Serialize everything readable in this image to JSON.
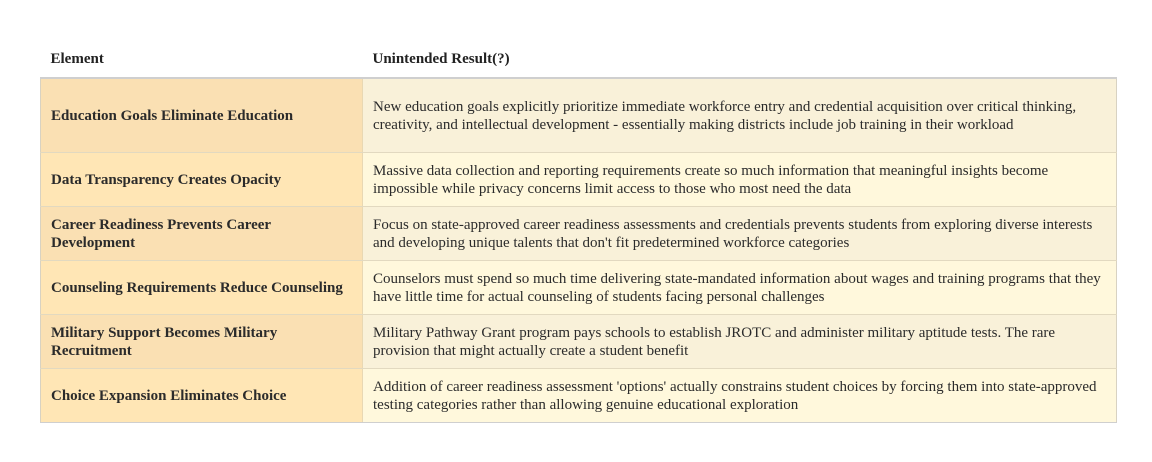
{
  "table": {
    "headers": {
      "element": "Element",
      "result": "Unintended Result(?)"
    },
    "rows": [
      {
        "element": "Education Goals Eliminate Education",
        "result": "New education goals explicitly prioritize immediate workforce entry and credential acquisition over critical thinking, creativity, and intellectual development - essentially making districts include job training in their workload"
      },
      {
        "element": "Data Transparency Creates Opacity",
        "result": "Massive data collection and reporting requirements create so much information that meaningful insights become impossible while privacy concerns limit access to those who most need the data"
      },
      {
        "element": "Career Readiness Prevents Career Development",
        "result": "Focus on state-approved career readiness assessments and credentials prevents students from exploring diverse interests and developing unique talents that don't fit predetermined workforce categories"
      },
      {
        "element": "Counseling Requirements Reduce Counseling",
        "result": "Counselors must spend so much time delivering state-mandated information about wages and training programs that they have little time for actual counseling of students facing personal challenges"
      },
      {
        "element": "Military Support Becomes Military Recruitment",
        "result": "Military Pathway Grant program pays schools to establish JROTC and administer military aptitude tests. The rare provision that might actually create a student benefit"
      },
      {
        "element": "Choice Expansion Eliminates Choice",
        "result": "Addition of career readiness assessment 'options' actually constrains student choices by forcing them into state-approved testing categories rather than allowing genuine educational exploration"
      }
    ]
  }
}
